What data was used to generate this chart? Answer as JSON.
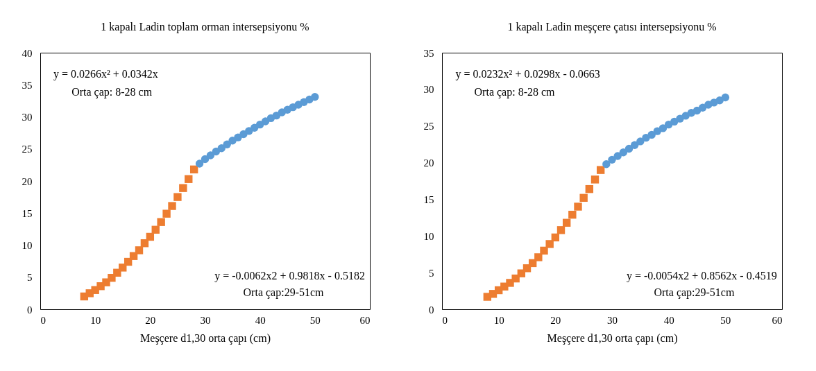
{
  "chart_data": [
    {
      "type": "scatter",
      "title": "1 kapalı Ladin toplam orman intersepsiyonu %",
      "xlabel": "Meşçere d1,30 orta çapı (cm)",
      "xlim": [
        0,
        60
      ],
      "xticks": [
        0,
        10,
        20,
        30,
        40,
        50,
        60
      ],
      "ylim": [
        0,
        40
      ],
      "yticks": [
        0,
        5,
        10,
        15,
        20,
        25,
        30,
        35,
        40
      ],
      "annotations": [
        "y = 0.0266x² + 0.0342x",
        "Orta çap: 8-28 cm",
        "y = -0.0062x2 + 0.9818x - 0.5182",
        "Orta çap:29-51cm"
      ],
      "series": [
        {
          "color": "#ed7d31",
          "marker": "square",
          "x": [
            8,
            9,
            10,
            11,
            12,
            13,
            14,
            15,
            16,
            17,
            18,
            19,
            20,
            21,
            22,
            23,
            24,
            25,
            26,
            27,
            28
          ],
          "values": [
            2.0,
            2.5,
            3.0,
            3.6,
            4.2,
            4.9,
            5.7,
            6.5,
            7.4,
            8.3,
            9.2,
            10.3,
            11.3,
            12.4,
            13.6,
            14.9,
            16.1,
            17.5,
            18.9,
            20.3,
            21.8
          ]
        },
        {
          "color": "#5b9bd5",
          "marker": "circle",
          "x": [
            29,
            30,
            31,
            32,
            33,
            34,
            35,
            36,
            37,
            38,
            39,
            40,
            41,
            42,
            43,
            44,
            45,
            46,
            47,
            48,
            49,
            50
          ],
          "values": [
            22.7,
            23.4,
            24.0,
            24.6,
            25.1,
            25.7,
            26.3,
            26.8,
            27.3,
            27.8,
            28.3,
            28.8,
            29.3,
            29.8,
            30.2,
            30.7,
            31.1,
            31.5,
            31.9,
            32.3,
            32.7,
            33.1
          ]
        }
      ]
    },
    {
      "type": "scatter",
      "title": "1 kapalı Ladin meşçere çatısı intersepsiyonu %",
      "xlabel": "Meşçere d1,30 orta çapı (cm)",
      "xlim": [
        0,
        60
      ],
      "xticks": [
        0,
        10,
        20,
        30,
        40,
        50,
        60
      ],
      "ylim": [
        0,
        35
      ],
      "yticks": [
        0,
        5,
        10,
        15,
        20,
        25,
        30,
        35
      ],
      "annotations": [
        "y = 0.0232x² + 0.0298x - 0.0663",
        "Orta çap: 8-28 cm",
        "y = -0.0054x2 + 0.8562x - 0.4519",
        "Orta çap:29-51cm"
      ],
      "series": [
        {
          "color": "#ed7d31",
          "marker": "square",
          "x": [
            8,
            9,
            10,
            11,
            12,
            13,
            14,
            15,
            16,
            17,
            18,
            19,
            20,
            21,
            22,
            23,
            24,
            25,
            26,
            27,
            28
          ],
          "values": [
            1.7,
            2.1,
            2.6,
            3.1,
            3.6,
            4.2,
            4.9,
            5.6,
            6.3,
            7.1,
            8.0,
            8.9,
            9.8,
            10.8,
            11.8,
            12.9,
            14.0,
            15.2,
            16.4,
            17.7,
            19.0
          ]
        },
        {
          "color": "#5b9bd5",
          "marker": "circle",
          "x": [
            29,
            30,
            31,
            32,
            33,
            34,
            35,
            36,
            37,
            38,
            39,
            40,
            41,
            42,
            43,
            44,
            45,
            46,
            47,
            48,
            49,
            50
          ],
          "values": [
            19.8,
            20.4,
            20.9,
            21.4,
            21.9,
            22.4,
            22.9,
            23.4,
            23.8,
            24.3,
            24.7,
            25.2,
            25.6,
            26.0,
            26.4,
            26.8,
            27.1,
            27.5,
            27.9,
            28.2,
            28.5,
            28.9
          ]
        }
      ]
    }
  ]
}
